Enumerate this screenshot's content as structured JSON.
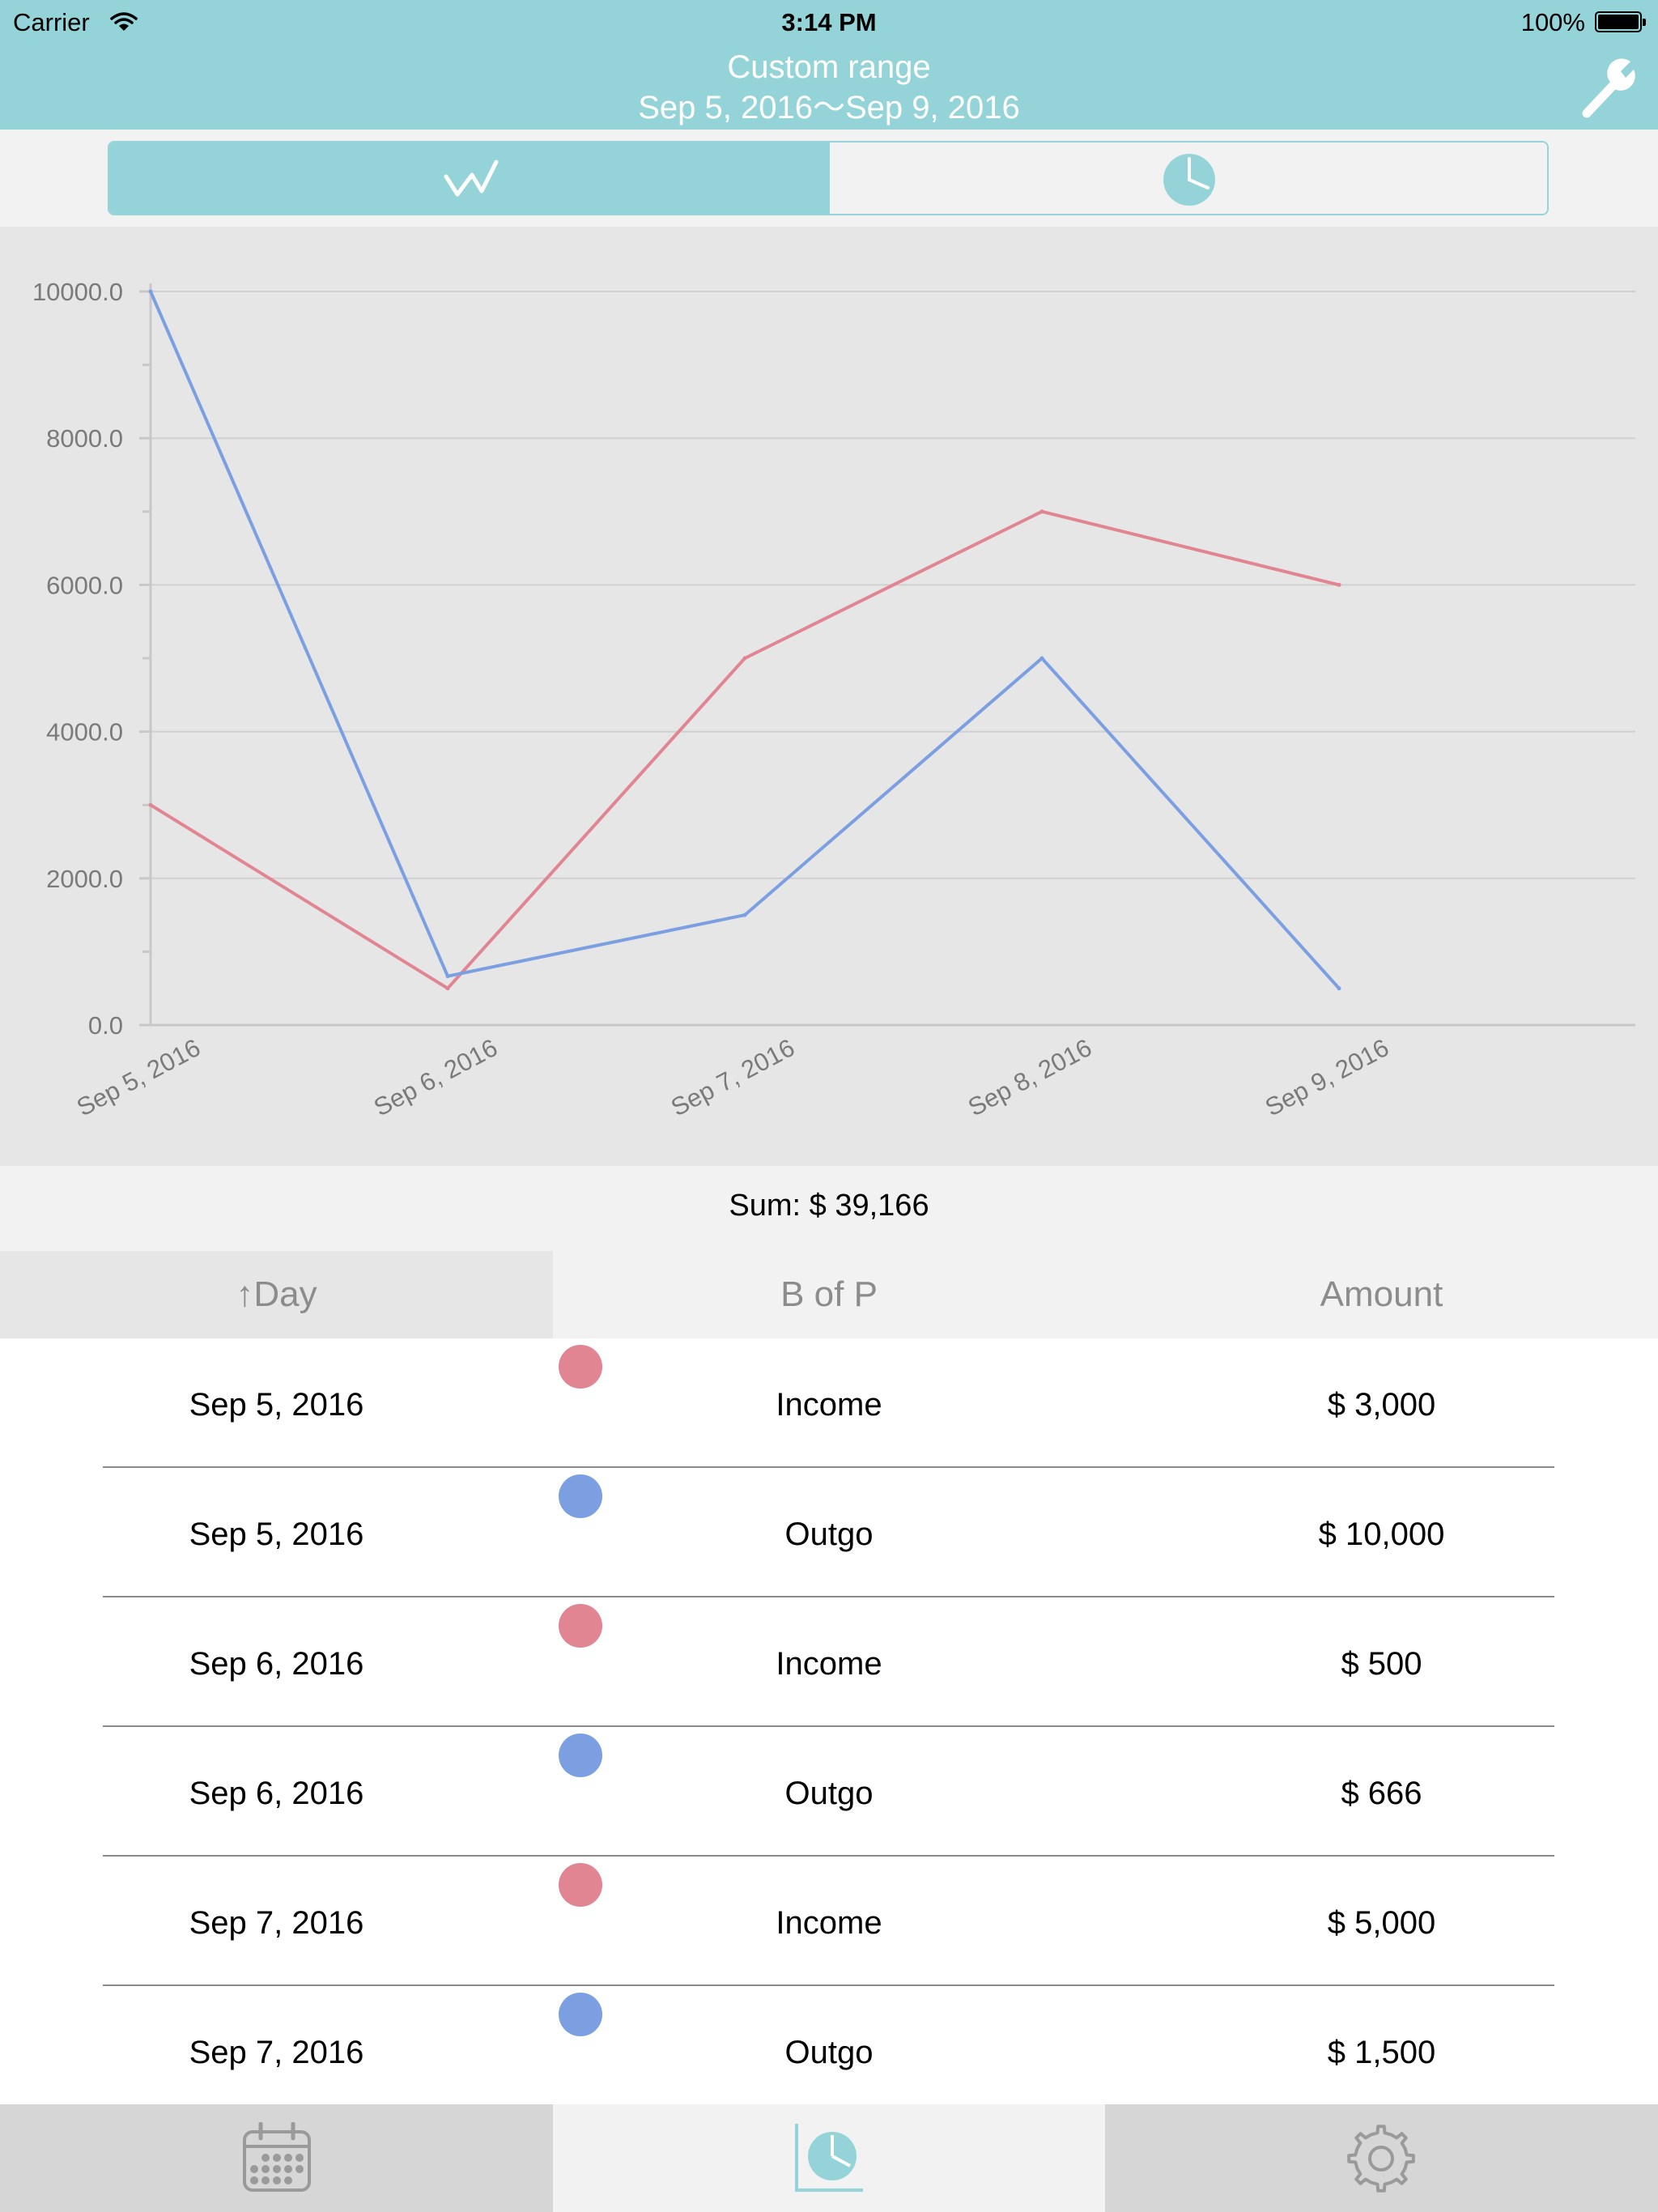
{
  "status_bar": {
    "carrier": "Carrier",
    "time": "3:14 PM",
    "battery": "100%"
  },
  "header": {
    "title": "Custom range",
    "subtitle": "Sep 5, 2016～Sep 9, 2016",
    "settings_icon": "wrench-icon",
    "color": "#94d4d9"
  },
  "segmented": {
    "selected": "line",
    "segments": [
      {
        "icon": "line-chart-icon"
      },
      {
        "icon": "pie-chart-icon"
      }
    ]
  },
  "chart_data": {
    "type": "line",
    "categories": [
      "Sep 5, 2016",
      "Sep 6, 2016",
      "Sep 7, 2016",
      "Sep 8, 2016",
      "Sep 9, 2016"
    ],
    "ylim": [
      0,
      10000
    ],
    "yticks": [
      "0.0",
      "2000.0",
      "4000.0",
      "6000.0",
      "8000.0",
      "10000.0"
    ],
    "grid": true,
    "series": [
      {
        "color": "#e08591",
        "values": [
          3000,
          500,
          5000,
          7000,
          6000
        ]
      },
      {
        "color": "#7b9fe0",
        "values": [
          10000,
          666,
          1500,
          5000,
          500
        ]
      }
    ]
  },
  "sum": {
    "label": "Sum:  $  39,166"
  },
  "table": {
    "headers": {
      "day": "↑Day",
      "bop": "B of P",
      "amount": "Amount"
    },
    "rows": [
      {
        "day": "Sep 5, 2016",
        "type": "Income",
        "amount": "$  3,000",
        "color": "#e08591"
      },
      {
        "day": "Sep 5, 2016",
        "type": "Outgo",
        "amount": "$  10,000",
        "color": "#7b9fe0"
      },
      {
        "day": "Sep 6, 2016",
        "type": "Income",
        "amount": "$  500",
        "color": "#e08591"
      },
      {
        "day": "Sep 6, 2016",
        "type": "Outgo",
        "amount": "$  666",
        "color": "#7b9fe0"
      },
      {
        "day": "Sep 7, 2016",
        "type": "Income",
        "amount": "$  5,000",
        "color": "#e08591"
      },
      {
        "day": "Sep 7, 2016",
        "type": "Outgo",
        "amount": "$  1,500",
        "color": "#7b9fe0"
      }
    ]
  },
  "tabbar": {
    "selected": "chart",
    "tabs": [
      {
        "icon": "calendar-icon"
      },
      {
        "icon": "pie-chart-tab-icon"
      },
      {
        "icon": "gear-icon"
      }
    ]
  }
}
